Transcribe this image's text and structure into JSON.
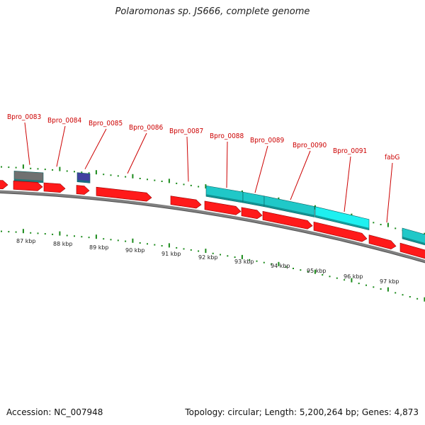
{
  "title": "Polaromonas sp. JS666, complete genome",
  "footer": {
    "accession": "Accession: NC_007948",
    "summary": "Topology: circular; Length: 5,200,264 bp; Genes: 4,873"
  },
  "colors": {
    "cds": "#ff1a1a",
    "rna": "#707070",
    "misc": "#4040a0",
    "feature_cyan": "#20c8c8",
    "feature_cyan_light": "#1ef0f0",
    "tick": "#1a8a1a",
    "label": "#cc0000",
    "backbone": "#808080"
  },
  "gene_labels": [
    "Bpro_0083",
    "Bpro_0084",
    "Bpro_0085",
    "Bpro_0086",
    "Bpro_0087",
    "Bpro_0088",
    "Bpro_0089",
    "Bpro_0090",
    "Bpro_0091",
    "fabG"
  ],
  "scale_labels": [
    "87 kbp",
    "88 kbp",
    "89 kbp",
    "90 kbp",
    "91 kbp",
    "92 kbp",
    "93 kbp",
    "94 kbp",
    "95 kbp",
    "96 kbp",
    "97 kbp"
  ]
}
